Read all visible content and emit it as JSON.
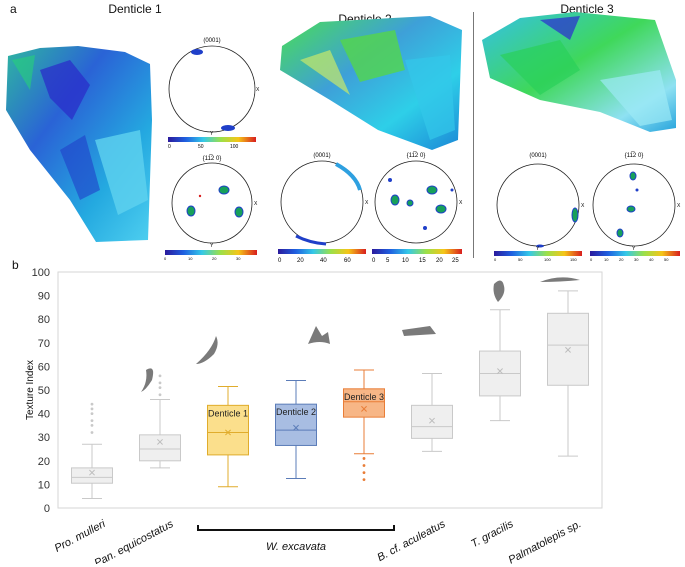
{
  "panel_a": {
    "label": "a",
    "denticles": [
      {
        "title": "Denticle 1",
        "pole_figures": [
          {
            "plane": "(0001)",
            "scale_ticks": [
              "0",
              "50",
              "100"
            ]
          },
          {
            "plane": "{11̅2 0}",
            "scale_ticks": [
              "0",
              "10",
              "20",
              "30"
            ]
          }
        ]
      },
      {
        "title": "Denticle 2",
        "pole_figures": [
          {
            "plane": "(0001)",
            "scale_ticks": [
              "0",
              "20",
              "40",
              "60"
            ]
          },
          {
            "plane": "{11̅2 0}",
            "scale_ticks": [
              "0",
              "5",
              "10",
              "15",
              "20",
              "25"
            ]
          }
        ]
      },
      {
        "title": "Denticle 3",
        "pole_figures": [
          {
            "plane": "(0001)",
            "scale_ticks": [
              "0",
              "50",
              "100",
              "150"
            ]
          },
          {
            "plane": "{11̅2 0}",
            "scale_ticks": [
              "0",
              "10",
              "20",
              "30",
              "40",
              "50"
            ]
          }
        ]
      }
    ],
    "axis_labels": {
      "x": "X",
      "y": "Y"
    }
  },
  "panel_b": {
    "label": "b",
    "group_label": "W. excavata"
  },
  "colors": {
    "grey_box": "#efefef",
    "grey_line": "#c9c9c9",
    "yellow_box": "#fbdf8c",
    "yellow_line": "#e0ac2c",
    "blue_box": "#a8bde2",
    "blue_line": "#5b7cb8",
    "orange_box": "#f7b686",
    "orange_line": "#e97d37",
    "silhouette": "#7a7a7a"
  },
  "chart_data": {
    "type": "box",
    "ylabel": "Texture Index",
    "ylim": [
      0,
      100
    ],
    "yticks": [
      0,
      10,
      20,
      30,
      40,
      50,
      60,
      70,
      80,
      90,
      100
    ],
    "categories": [
      "Pro. mulleri",
      "Pan. equicostatus",
      "Denticle 1",
      "Denticle 2",
      "Denticle 3",
      "B. cf. aculeatus",
      "T. gracilis",
      "Palmatolepis sp."
    ],
    "xtick_labels": [
      "Pro. mulleri",
      "Pan. equicostatus",
      "",
      "",
      "",
      "B. cf. aculeatus",
      "T. gracilis",
      "Palmatolepis sp."
    ],
    "box_labels": [
      "",
      "",
      "Denticle 1",
      "Denticle 2",
      "Denticle 3",
      "",
      "",
      ""
    ],
    "series": [
      {
        "name": "Pro. mulleri",
        "color": "grey",
        "min": 4,
        "q1": 10.5,
        "median": 13,
        "q3": 17,
        "max": 27,
        "mean": 15,
        "outliers": [
          32,
          35,
          37,
          40,
          42,
          44
        ]
      },
      {
        "name": "Pan. equicostatus",
        "color": "grey",
        "min": 17,
        "q1": 20,
        "median": 25,
        "q3": 31,
        "max": 46,
        "mean": 28,
        "outliers": [
          48,
          51,
          53,
          56
        ]
      },
      {
        "name": "Denticle 1",
        "color": "yellow",
        "min": 9,
        "q1": 22.5,
        "median": 32,
        "q3": 43.5,
        "max": 51.5,
        "mean": 32,
        "outliers": []
      },
      {
        "name": "Denticle 2",
        "color": "blue",
        "min": 12.5,
        "q1": 26.5,
        "median": 33,
        "q3": 44,
        "max": 54,
        "mean": 34,
        "outliers": []
      },
      {
        "name": "Denticle 3",
        "color": "orange",
        "min": 23,
        "q1": 38.5,
        "median": 45,
        "q3": 50.5,
        "max": 58.5,
        "mean": 42,
        "outliers": [
          12,
          15,
          18,
          21
        ]
      },
      {
        "name": "B. cf. aculeatus",
        "color": "grey",
        "min": 24,
        "q1": 29.5,
        "median": 34.5,
        "q3": 43.5,
        "max": 57,
        "mean": 37,
        "outliers": []
      },
      {
        "name": "T. gracilis",
        "color": "grey",
        "min": 37,
        "q1": 47.5,
        "median": 57,
        "q3": 66.5,
        "max": 84,
        "mean": 58,
        "outliers": []
      },
      {
        "name": "Palmatolepis sp.",
        "color": "grey",
        "min": 22,
        "q1": 52,
        "median": 69,
        "q3": 82.5,
        "max": 92,
        "mean": 67,
        "outliers": []
      }
    ]
  }
}
